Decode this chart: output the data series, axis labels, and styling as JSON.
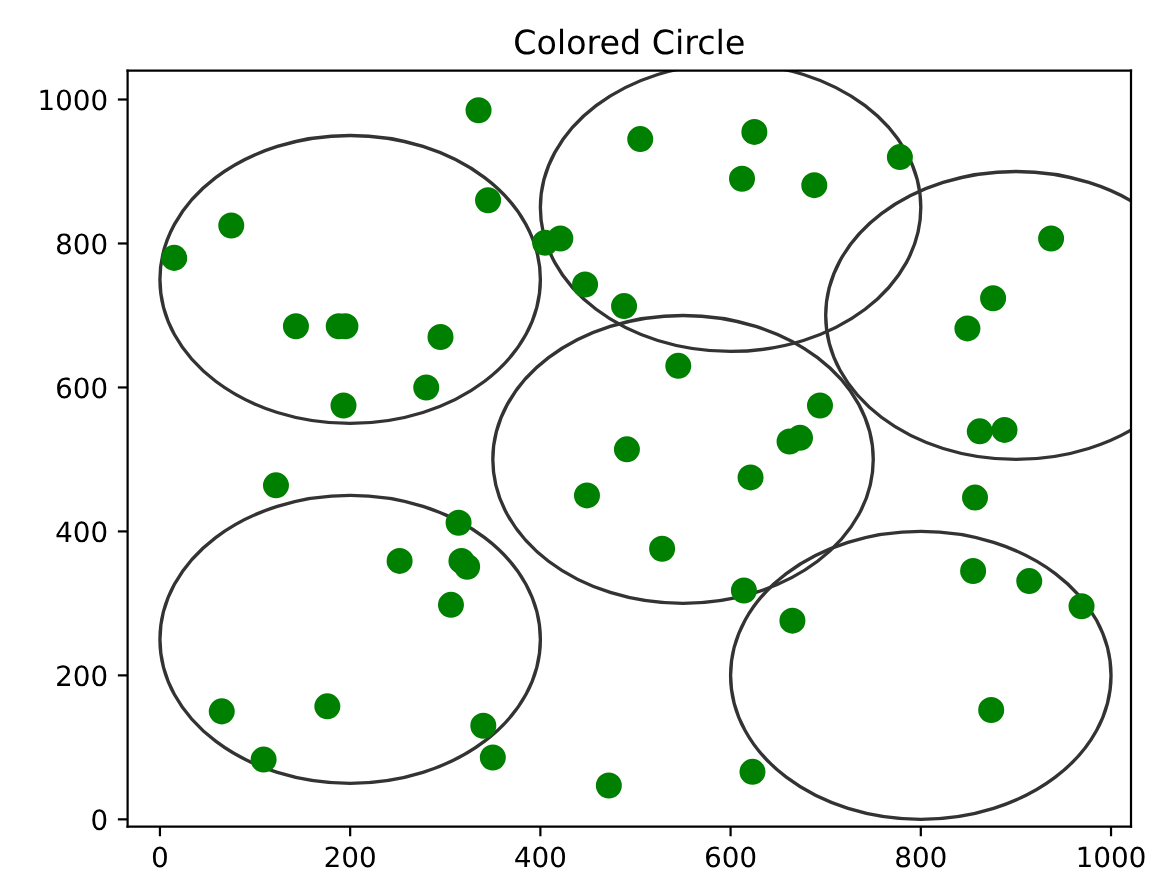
{
  "chart_data": {
    "type": "scatter",
    "title": "Colored Circle",
    "xlim": [
      -34,
      1021
    ],
    "ylim": [
      -10,
      1040
    ],
    "xticks": [
      0,
      200,
      400,
      600,
      800,
      1000
    ],
    "yticks": [
      0,
      200,
      400,
      600,
      800,
      1000
    ],
    "grid": false,
    "series": [
      {
        "color": "#008000",
        "marker": "circle",
        "x": [
          15,
          75,
          143,
          188,
          195,
          295,
          280,
          193,
          335,
          345,
          405,
          421,
          447,
          488,
          505,
          625,
          612,
          688,
          778,
          937,
          876,
          849,
          862,
          888,
          545,
          694,
          662,
          673,
          491,
          449,
          621,
          528,
          857,
          855,
          914,
          969,
          665,
          614,
          874,
          623,
          472,
          122,
          252,
          314,
          317,
          323,
          306,
          65,
          109,
          176,
          340,
          350
        ],
        "values": [
          780,
          825,
          685,
          685,
          685,
          670,
          600,
          575,
          985,
          860,
          801,
          807,
          743,
          713,
          945,
          955,
          890,
          881,
          920,
          807,
          724,
          682,
          539,
          541,
          630,
          575,
          525,
          530,
          514,
          450,
          475,
          376,
          447,
          345,
          331,
          296,
          276,
          318,
          152,
          66,
          47,
          464,
          359,
          412,
          359,
          351,
          298,
          150,
          83,
          157,
          130,
          86
        ]
      }
    ]
  }
}
